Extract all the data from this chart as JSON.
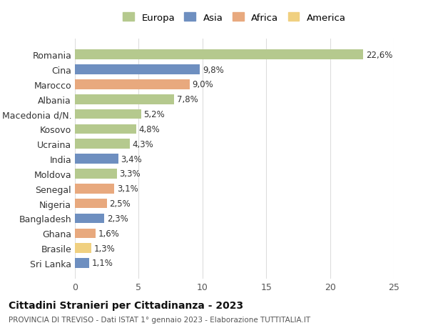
{
  "countries": [
    "Romania",
    "Cina",
    "Marocco",
    "Albania",
    "Macedonia d/N.",
    "Kosovo",
    "Ucraina",
    "India",
    "Moldova",
    "Senegal",
    "Nigeria",
    "Bangladesh",
    "Ghana",
    "Brasile",
    "Sri Lanka"
  ],
  "values": [
    22.6,
    9.8,
    9.0,
    7.8,
    5.2,
    4.8,
    4.3,
    3.4,
    3.3,
    3.1,
    2.5,
    2.3,
    1.6,
    1.3,
    1.1
  ],
  "labels": [
    "22,6%",
    "9,8%",
    "9,0%",
    "7,8%",
    "5,2%",
    "4,8%",
    "4,3%",
    "3,4%",
    "3,3%",
    "3,1%",
    "2,5%",
    "2,3%",
    "1,6%",
    "1,3%",
    "1,1%"
  ],
  "continents": [
    "Europa",
    "Asia",
    "Africa",
    "Europa",
    "Europa",
    "Europa",
    "Europa",
    "Asia",
    "Europa",
    "Africa",
    "Africa",
    "Asia",
    "Africa",
    "America",
    "Asia"
  ],
  "colors": {
    "Europa": "#b5c98e",
    "Asia": "#6e8fc0",
    "Africa": "#e8a97e",
    "America": "#f0d080"
  },
  "legend_order": [
    "Europa",
    "Asia",
    "Africa",
    "America"
  ],
  "title": "Cittadini Stranieri per Cittadinanza - 2023",
  "subtitle": "PROVINCIA DI TREVISO - Dati ISTAT 1° gennaio 2023 - Elaborazione TUTTITALIA.IT",
  "xlim": [
    0,
    25
  ],
  "xticks": [
    0,
    5,
    10,
    15,
    20,
    25
  ],
  "background_color": "#ffffff",
  "grid_color": "#dddddd",
  "bar_height": 0.65
}
